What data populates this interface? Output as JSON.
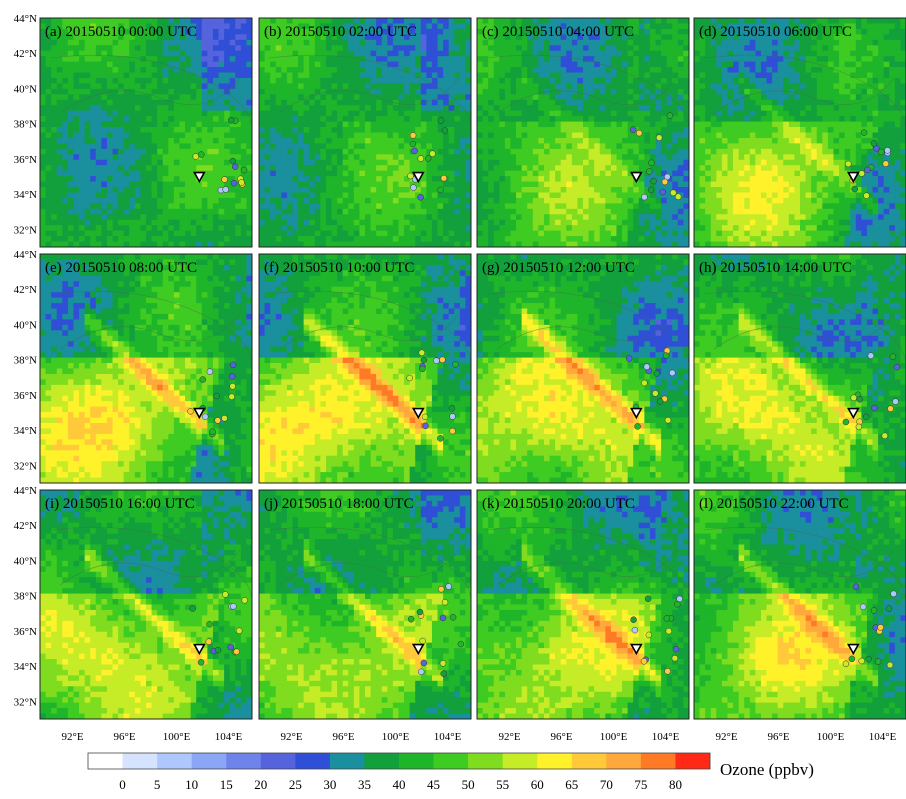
{
  "chart_data": {
    "type": "heatmap",
    "figure": "12-panel surface ozone maps",
    "panels": [
      {
        "id": "a",
        "title": "(a) 20150510 00:00 UTC",
        "hot": 0.05
      },
      {
        "id": "b",
        "title": "(b) 20150510 02:00 UTC",
        "hot": 0.1
      },
      {
        "id": "c",
        "title": "(c) 20150510 04:00 UTC",
        "hot": 0.35
      },
      {
        "id": "d",
        "title": "(d) 20150510 06:00 UTC",
        "hot": 0.55
      },
      {
        "id": "e",
        "title": "(e) 20150510 08:00 UTC",
        "hot": 0.85
      },
      {
        "id": "f",
        "title": "(f) 20150510 10:00 UTC",
        "hot": 0.95
      },
      {
        "id": "g",
        "title": "(g) 20150510 12:00 UTC",
        "hot": 0.85
      },
      {
        "id": "h",
        "title": "(h) 20150510 14:00 UTC",
        "hot": 0.75
      },
      {
        "id": "i",
        "title": "(i) 20150510 16:00 UTC",
        "hot": 0.75
      },
      {
        "id": "j",
        "title": "(j) 20150510 18:00 UTC",
        "hot": 0.7
      },
      {
        "id": "k",
        "title": "(k) 20150510 20:00 UTC",
        "hot": 0.75
      },
      {
        "id": "l",
        "title": "(l) 20150510 22:00 UTC",
        "hot": 0.7
      }
    ],
    "lat_ticks": [
      "44°N",
      "42°N",
      "40°N",
      "38°N",
      "36°N",
      "34°N",
      "32°N"
    ],
    "lon_ticks": [
      "92°E",
      "96°E",
      "100°E",
      "104°E"
    ],
    "lat_range": [
      31,
      44
    ],
    "lon_range": [
      89.5,
      105.8
    ],
    "colorbar": {
      "labels": [
        "0",
        "5",
        "10",
        "15",
        "20",
        "25",
        "30",
        "35",
        "40",
        "45",
        "50",
        "55",
        "60",
        "65",
        "70",
        "75",
        "80"
      ],
      "colors": [
        "#ffffff",
        "#d5e3ff",
        "#aec8ff",
        "#8aa6f4",
        "#6f84ea",
        "#5563dd",
        "#2f4fd6",
        "#1a8f9d",
        "#12a03c",
        "#1fb52a",
        "#3ecb22",
        "#7fdc1e",
        "#c6ec27",
        "#fff22a",
        "#ffc93a",
        "#ffa83c",
        "#ff7a25",
        "#ff2a16"
      ],
      "title": "Ozone (ppbv)"
    },
    "station": {
      "lon": 101.75,
      "lat": 35.0
    }
  }
}
